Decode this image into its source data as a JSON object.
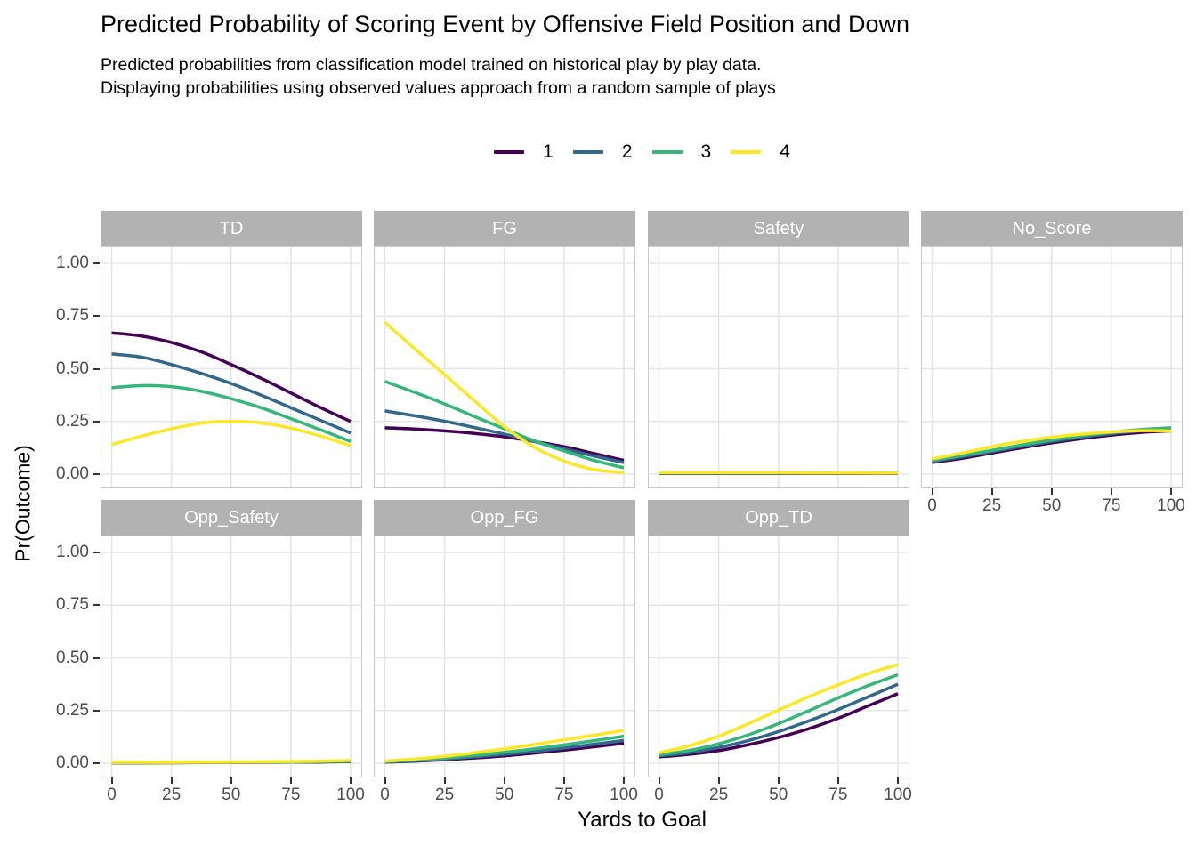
{
  "chart_data": {
    "type": "line",
    "title": "Predicted Probability of Scoring Event by Offensive Field Position and Down",
    "subtitle_lines": [
      "Predicted probabilities from classification model trained on historical play by play data.",
      "Displaying probabilities using observed values approach from a random sample of plays"
    ],
    "xlabel": "Yards to Goal",
    "ylabel": "Pr(Outcome)",
    "x_range": [
      0,
      100
    ],
    "y_range": [
      0,
      1
    ],
    "x_tick_values": [
      0,
      25,
      50,
      75,
      100
    ],
    "x_tick_labels": [
      "0",
      "25",
      "50",
      "75",
      "100"
    ],
    "y_tick_values": [
      1.0,
      0.75,
      0.5,
      0.25,
      0.0
    ],
    "y_tick_labels": [
      "1.00",
      "0.75",
      "0.50",
      "0.25",
      "0.00"
    ],
    "grid": "major-only",
    "legend": {
      "position": "top-center",
      "entries": [
        {
          "label": "1",
          "color": "#440154"
        },
        {
          "label": "2",
          "color": "#31688E"
        },
        {
          "label": "3",
          "color": "#35B779"
        },
        {
          "label": "4",
          "color": "#FDE725"
        }
      ]
    },
    "sample_x": [
      0,
      12.5,
      25,
      37.5,
      50,
      62.5,
      75,
      87.5,
      100
    ],
    "facets": [
      {
        "name": "TD",
        "row": 0,
        "col": 0,
        "series": [
          [
            0.67,
            0.655,
            0.625,
            0.58,
            0.52,
            0.455,
            0.385,
            0.315,
            0.25
          ],
          [
            0.57,
            0.555,
            0.52,
            0.478,
            0.43,
            0.375,
            0.315,
            0.255,
            0.195
          ],
          [
            0.41,
            0.42,
            0.415,
            0.393,
            0.358,
            0.315,
            0.263,
            0.21,
            0.155
          ],
          [
            0.14,
            0.18,
            0.215,
            0.242,
            0.25,
            0.243,
            0.218,
            0.18,
            0.135
          ]
        ]
      },
      {
        "name": "FG",
        "row": 0,
        "col": 1,
        "series": [
          [
            0.22,
            0.214,
            0.205,
            0.193,
            0.177,
            0.155,
            0.13,
            0.098,
            0.065
          ],
          [
            0.3,
            0.277,
            0.251,
            0.221,
            0.19,
            0.155,
            0.12,
            0.086,
            0.055
          ],
          [
            0.44,
            0.388,
            0.333,
            0.273,
            0.215,
            0.158,
            0.11,
            0.065,
            0.03
          ],
          [
            0.72,
            0.595,
            0.472,
            0.348,
            0.225,
            0.128,
            0.062,
            0.022,
            0.007
          ]
        ]
      },
      {
        "name": "Safety",
        "row": 0,
        "col": 2,
        "series": [
          [
            0.003,
            0.003,
            0.003,
            0.003,
            0.003,
            0.003,
            0.003,
            0.003,
            0.003
          ],
          [
            0.004,
            0.004,
            0.004,
            0.004,
            0.004,
            0.004,
            0.004,
            0.004,
            0.004
          ],
          [
            0.005,
            0.005,
            0.005,
            0.005,
            0.005,
            0.005,
            0.005,
            0.005,
            0.005
          ],
          [
            0.007,
            0.007,
            0.007,
            0.007,
            0.007,
            0.006,
            0.006,
            0.005,
            0.005
          ]
        ]
      },
      {
        "name": "No_Score",
        "row": 0,
        "col": 3,
        "series": [
          [
            0.055,
            0.075,
            0.1,
            0.125,
            0.148,
            0.168,
            0.185,
            0.198,
            0.205
          ],
          [
            0.06,
            0.082,
            0.107,
            0.132,
            0.155,
            0.175,
            0.192,
            0.205,
            0.215
          ],
          [
            0.065,
            0.088,
            0.113,
            0.138,
            0.162,
            0.182,
            0.198,
            0.212,
            0.22
          ],
          [
            0.072,
            0.1,
            0.13,
            0.155,
            0.175,
            0.19,
            0.2,
            0.206,
            0.205
          ]
        ]
      },
      {
        "name": "Opp_Safety",
        "row": 1,
        "col": 0,
        "series": [
          [
            0.002,
            0.002,
            0.002,
            0.003,
            0.003,
            0.004,
            0.005,
            0.006,
            0.008
          ],
          [
            0.002,
            0.002,
            0.003,
            0.003,
            0.004,
            0.004,
            0.005,
            0.007,
            0.009
          ],
          [
            0.003,
            0.003,
            0.003,
            0.004,
            0.004,
            0.005,
            0.006,
            0.008,
            0.01
          ],
          [
            0.004,
            0.004,
            0.004,
            0.005,
            0.005,
            0.006,
            0.008,
            0.01,
            0.013
          ]
        ]
      },
      {
        "name": "Opp_FG",
        "row": 1,
        "col": 1,
        "series": [
          [
            0.005,
            0.01,
            0.017,
            0.025,
            0.035,
            0.048,
            0.062,
            0.078,
            0.095
          ],
          [
            0.006,
            0.012,
            0.02,
            0.03,
            0.042,
            0.056,
            0.072,
            0.09,
            0.108
          ],
          [
            0.008,
            0.015,
            0.025,
            0.037,
            0.052,
            0.068,
            0.087,
            0.107,
            0.128
          ],
          [
            0.01,
            0.02,
            0.033,
            0.049,
            0.068,
            0.089,
            0.111,
            0.133,
            0.155
          ]
        ]
      },
      {
        "name": "Opp_TD",
        "row": 1,
        "col": 2,
        "series": [
          [
            0.03,
            0.042,
            0.06,
            0.088,
            0.122,
            0.163,
            0.213,
            0.272,
            0.33
          ],
          [
            0.035,
            0.05,
            0.075,
            0.108,
            0.15,
            0.2,
            0.255,
            0.315,
            0.375
          ],
          [
            0.04,
            0.06,
            0.092,
            0.135,
            0.188,
            0.248,
            0.31,
            0.368,
            0.42
          ],
          [
            0.05,
            0.082,
            0.128,
            0.188,
            0.252,
            0.315,
            0.372,
            0.425,
            0.468
          ]
        ]
      }
    ],
    "style": {
      "strip_bg": "#b2b2b2",
      "strip_text": "#ffffff",
      "panel_bg": "#ffffff",
      "panel_border": "#c9c9c9",
      "gridline": "#e5e5e5",
      "tick_color": "#333333",
      "axis_text": "#4d4d4d"
    }
  }
}
